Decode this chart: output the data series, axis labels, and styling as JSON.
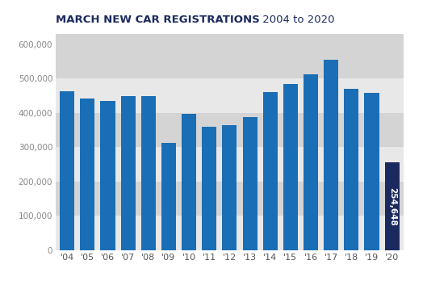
{
  "title_bold": "MARCH NEW CAR REGISTRATIONS",
  "title_light": " 2004 to 2020",
  "years": [
    "'04",
    "'05",
    "'06",
    "'07",
    "'08",
    "'09",
    "'10",
    "'11",
    "'12",
    "'13",
    "'14",
    "'15",
    "'16",
    "'17",
    "'18",
    "'19",
    "'20"
  ],
  "values": [
    462823,
    440734,
    435293,
    447562,
    448350,
    311575,
    397091,
    358444,
    363004,
    388125,
    460807,
    484681,
    511544,
    553618,
    469696,
    458054,
    254648
  ],
  "bar_color_main": "#1a6eb5",
  "bar_color_last": "#1b2a5e",
  "annotation_value": "254,648",
  "annotation_bg": "#1b2a5e",
  "annotation_text_color": "#ffffff",
  "ylim": [
    0,
    630000
  ],
  "yticks": [
    0,
    100000,
    200000,
    300000,
    400000,
    500000,
    600000
  ],
  "ytick_labels": [
    "0",
    "100,000",
    "200,000",
    "300,000",
    "400,000",
    "500,000",
    "600,000"
  ],
  "background_color": "#ffffff",
  "stripe_colors_alt": [
    "#d4d4d4",
    "#e8e8e8"
  ],
  "title_color": "#1b2a5e"
}
